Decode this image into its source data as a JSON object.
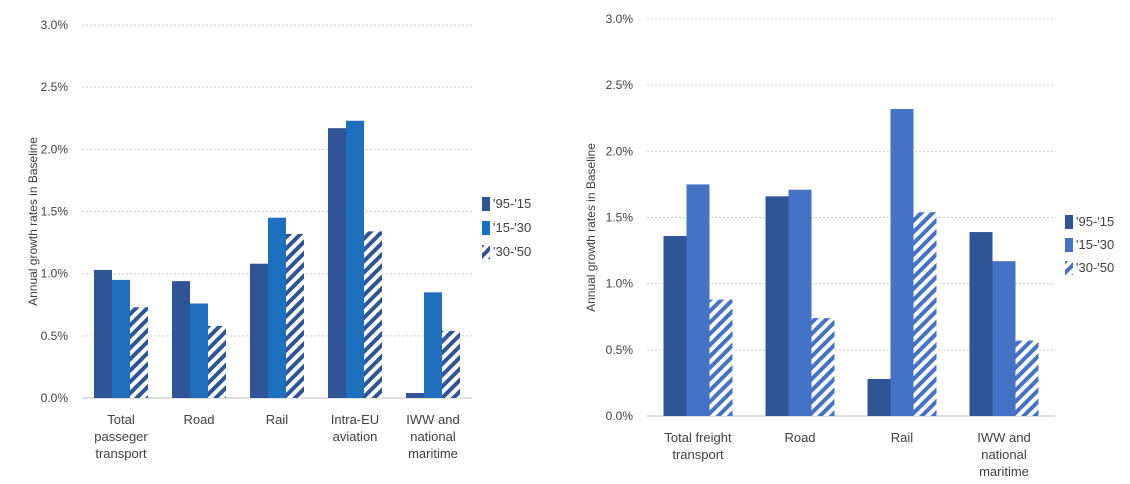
{
  "chart_data": [
    {
      "type": "bar",
      "ylabel": "Annual growth rates in Baseline",
      "ylim": [
        0,
        3.0
      ],
      "y_ticks": [
        "0.0%",
        "0.5%",
        "1.0%",
        "1.5%",
        "2.0%",
        "2.5%",
        "3.0%"
      ],
      "grid": true,
      "legend_position": "right",
      "categories": [
        [
          "Total",
          "passeger",
          "transport"
        ],
        [
          "Road"
        ],
        [
          "Rail"
        ],
        [
          "Intra-EU",
          "aviation"
        ],
        [
          "IWW and",
          "national",
          "maritime"
        ]
      ],
      "series": [
        {
          "name": "'95-'15",
          "values": [
            1.03,
            0.94,
            1.08,
            2.17,
            0.04
          ],
          "color": "#2F5597",
          "pattern": "solid"
        },
        {
          "name": "'15-'30",
          "values": [
            0.95,
            0.76,
            1.45,
            2.23,
            0.85
          ],
          "color": "#1F6FBF",
          "pattern": "solid"
        },
        {
          "name": "'30-'50",
          "values": [
            0.73,
            0.58,
            1.32,
            1.34,
            0.54
          ],
          "color": "#2F5597",
          "pattern": "hatch"
        }
      ]
    },
    {
      "type": "bar",
      "ylabel": "Annual growth rates in Baseline",
      "ylim": [
        0,
        3.0
      ],
      "y_ticks": [
        "0.0%",
        "0.5%",
        "1.0%",
        "1.5%",
        "2.0%",
        "2.5%",
        "3.0%"
      ],
      "grid": true,
      "legend_position": "right",
      "categories": [
        [
          "Total freight",
          "transport"
        ],
        [
          "Road"
        ],
        [
          "Rail"
        ],
        [
          "IWW and",
          "national",
          "maritime"
        ]
      ],
      "series": [
        {
          "name": "'95-'15",
          "values": [
            1.36,
            1.66,
            0.28,
            1.39
          ],
          "color": "#2F5597",
          "pattern": "solid"
        },
        {
          "name": "'15-'30",
          "values": [
            1.75,
            1.71,
            2.32,
            1.17
          ],
          "color": "#4472C4",
          "pattern": "solid"
        },
        {
          "name": "'30-'50",
          "values": [
            0.88,
            0.74,
            1.54,
            0.57
          ],
          "color": "#4472C4",
          "pattern": "hatch"
        }
      ]
    }
  ]
}
